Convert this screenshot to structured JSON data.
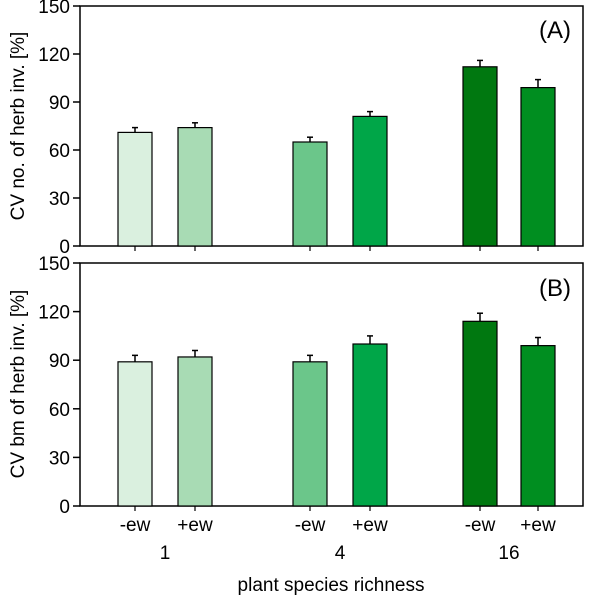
{
  "figure": {
    "xlabel": "plant species richness"
  },
  "chart_data": [
    {
      "type": "bar",
      "panel_label": "(A)",
      "ylabel": "CV no. of herb inv. [%]",
      "ylim": [
        0,
        150
      ],
      "yticks": [
        "0",
        "30",
        "60",
        "90",
        "120",
        "150"
      ],
      "groups": [
        "1",
        "4",
        "16"
      ],
      "categories": [
        "-ew",
        "+ew",
        "-ew",
        "+ew",
        "-ew",
        "+ew"
      ],
      "values": [
        71,
        74,
        65,
        81,
        112,
        99
      ],
      "errors": [
        3,
        3,
        3,
        3,
        4,
        5
      ],
      "colors": [
        "#daf0df",
        "#a8dbb4",
        "#6bc68a",
        "#00a648",
        "#007810",
        "#008e20"
      ]
    },
    {
      "type": "bar",
      "panel_label": "(B)",
      "ylabel": "CV bm of herb inv. [%]",
      "ylim": [
        0,
        150
      ],
      "yticks": [
        "0",
        "30",
        "60",
        "90",
        "120",
        "150"
      ],
      "groups": [
        "1",
        "4",
        "16"
      ],
      "categories": [
        "-ew",
        "+ew",
        "-ew",
        "+ew",
        "-ew",
        "+ew"
      ],
      "values": [
        89,
        92,
        89,
        100,
        114,
        99
      ],
      "errors": [
        4,
        4,
        4,
        5,
        5,
        5
      ],
      "colors": [
        "#daf0df",
        "#a8dbb4",
        "#6bc68a",
        "#00a648",
        "#007810",
        "#008e20"
      ]
    }
  ]
}
